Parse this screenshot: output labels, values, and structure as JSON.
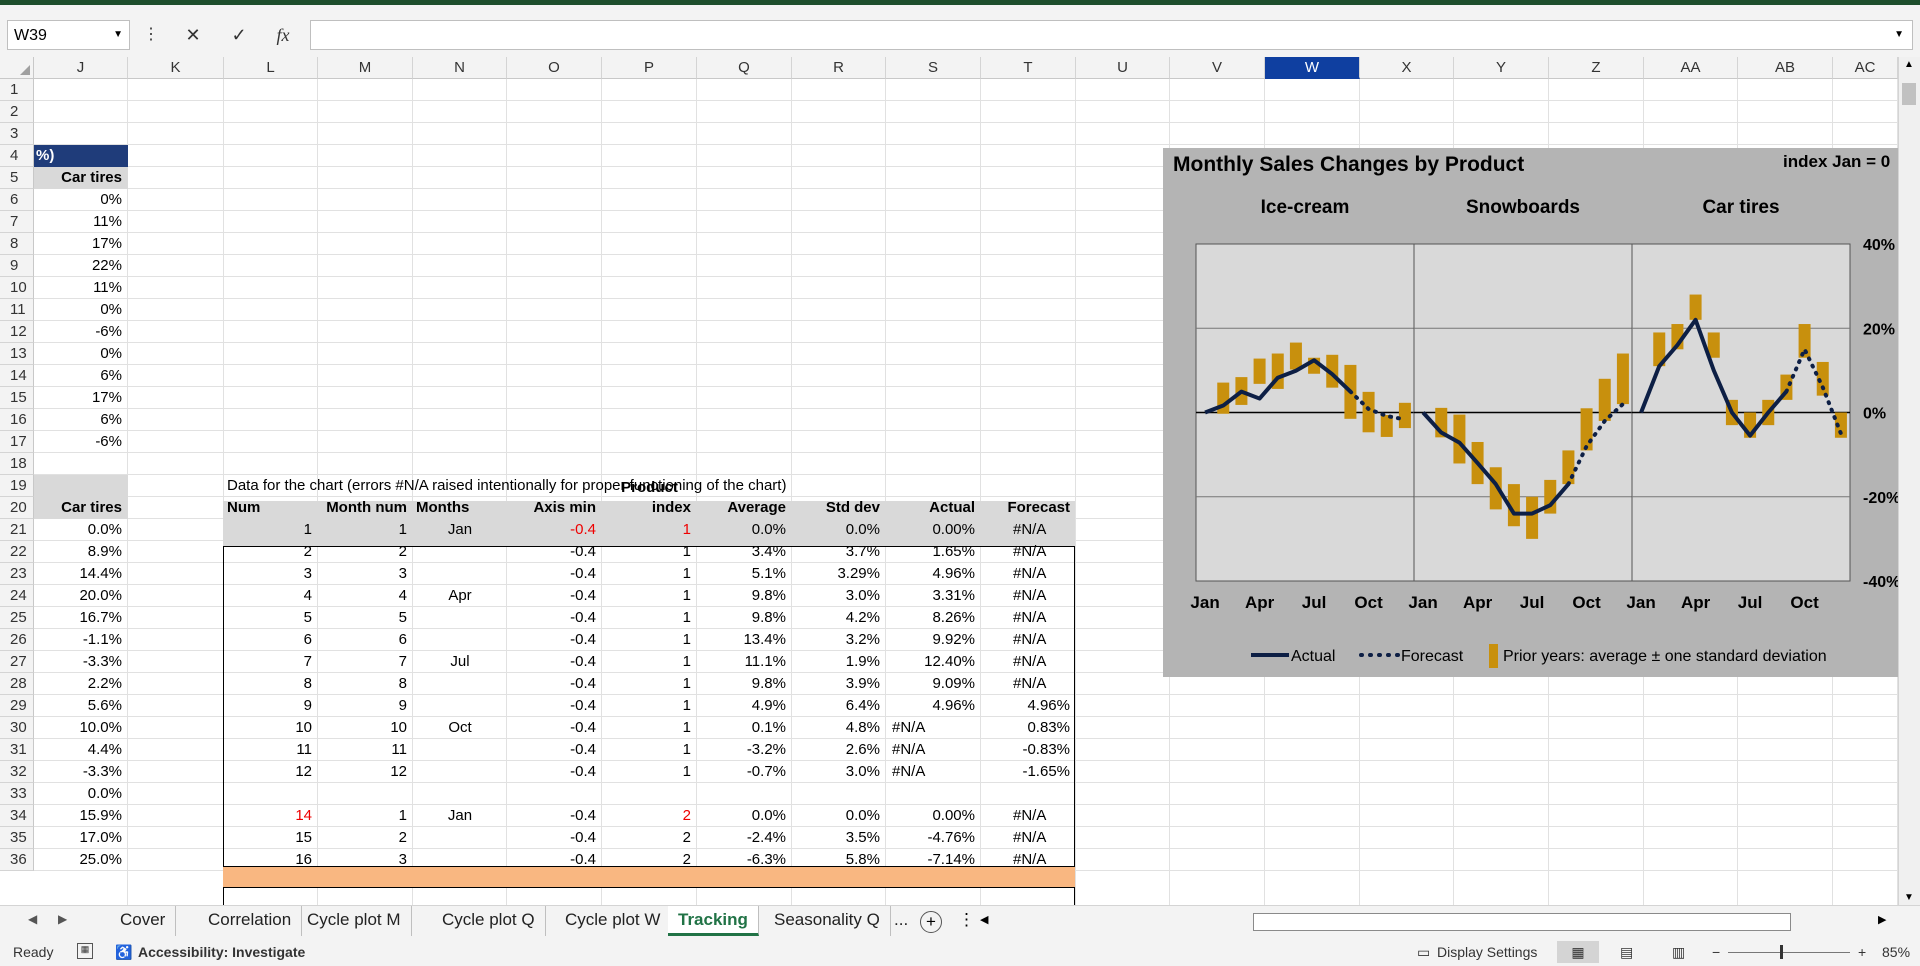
{
  "formula_bar": {
    "name_box": "W39",
    "cancel": "✕",
    "enter": "✓",
    "fx": "fx",
    "formula": ""
  },
  "columns": [
    "J",
    "K",
    "L",
    "M",
    "N",
    "O",
    "P",
    "Q",
    "R",
    "S",
    "T",
    "U",
    "V",
    "W",
    "X",
    "Y",
    "Z",
    "AA",
    "AB",
    "AC"
  ],
  "selected_column": "W",
  "rows": [
    "1",
    "2",
    "3",
    "4",
    "5",
    "6",
    "7",
    "8",
    "9",
    "10",
    "11",
    "12",
    "13",
    "14",
    "15",
    "16",
    "17",
    "18",
    "19",
    "20",
    "21",
    "22",
    "23",
    "24",
    "25",
    "26",
    "27",
    "28",
    "29",
    "30",
    "31",
    "32",
    "33",
    "34",
    "35",
    "36"
  ],
  "col_j": {
    "r4": "%)",
    "r5": "Car tires",
    "top_values": [
      "0%",
      "11%",
      "17%",
      "22%",
      "11%",
      "0%",
      "-6%",
      "0%",
      "6%",
      "17%",
      "6%",
      "-6%"
    ],
    "r20": "Car tires",
    "bottom_values": [
      "0.0%",
      "8.9%",
      "14.4%",
      "20.0%",
      "16.7%",
      "-1.1%",
      "-3.3%",
      "2.2%",
      "5.6%",
      "10.0%",
      "4.4%",
      "-3.3%",
      "0.0%",
      "15.9%",
      "17.0%",
      "25.0%"
    ]
  },
  "table": {
    "caption": "Data for the chart (errors #N/A raised intentionally for proper functioning of the chart)",
    "headers": {
      "num": "Num",
      "month_num": "Month num",
      "months": "Months",
      "axis_min": "Axis min",
      "product_top": "Product",
      "product_bottom": "index",
      "average": "Average",
      "std_dev": "Std dev",
      "actual": "Actual",
      "forecast": "Forecast"
    },
    "rows": [
      [
        "1",
        "1",
        "Jan",
        "-0.4",
        "1",
        "0.0%",
        "0.0%",
        "0.00%",
        "#N/A"
      ],
      [
        "2",
        "2",
        "",
        "-0.4",
        "1",
        "3.4%",
        "3.7%",
        "1.65%",
        "#N/A"
      ],
      [
        "3",
        "3",
        "",
        "-0.4",
        "1",
        "5.1%",
        "3.29%",
        "4.96%",
        "#N/A"
      ],
      [
        "4",
        "4",
        "Apr",
        "-0.4",
        "1",
        "9.8%",
        "3.0%",
        "3.31%",
        "#N/A"
      ],
      [
        "5",
        "5",
        "",
        "-0.4",
        "1",
        "9.8%",
        "4.2%",
        "8.26%",
        "#N/A"
      ],
      [
        "6",
        "6",
        "",
        "-0.4",
        "1",
        "13.4%",
        "3.2%",
        "9.92%",
        "#N/A"
      ],
      [
        "7",
        "7",
        "Jul",
        "-0.4",
        "1",
        "11.1%",
        "1.9%",
        "12.40%",
        "#N/A"
      ],
      [
        "8",
        "8",
        "",
        "-0.4",
        "1",
        "9.8%",
        "3.9%",
        "9.09%",
        "#N/A"
      ],
      [
        "9",
        "9",
        "",
        "-0.4",
        "1",
        "4.9%",
        "6.4%",
        "4.96%",
        "4.96%"
      ],
      [
        "10",
        "10",
        "Oct",
        "-0.4",
        "1",
        "0.1%",
        "4.8%",
        "#N/A",
        "0.83%"
      ],
      [
        "11",
        "11",
        "",
        "-0.4",
        "1",
        "-3.2%",
        "2.6%",
        "#N/A",
        "-0.83%"
      ],
      [
        "12",
        "12",
        "",
        "-0.4",
        "1",
        "-0.7%",
        "3.0%",
        "#N/A",
        "-1.65%"
      ],
      [
        "",
        "",
        "",
        "",
        "",
        "",
        "",
        "",
        ""
      ],
      [
        "14",
        "1",
        "Jan",
        "-0.4",
        "2",
        "0.0%",
        "0.0%",
        "0.00%",
        "#N/A"
      ],
      [
        "15",
        "2",
        "",
        "-0.4",
        "2",
        "-2.4%",
        "3.5%",
        "-4.76%",
        "#N/A"
      ],
      [
        "16",
        "3",
        "",
        "-0.4",
        "2",
        "-6.3%",
        "5.8%",
        "-7.14%",
        "#N/A"
      ]
    ]
  },
  "chart_data": {
    "type": "line",
    "title": "Monthly Sales Changes by Product",
    "subtitle": "index Jan = 0",
    "panels": [
      "Ice-cream",
      "Snowboards",
      "Car tires"
    ],
    "x_tick_labels": [
      "Jan",
      "Apr",
      "Jul",
      "Oct"
    ],
    "y_tick_labels": [
      "40%",
      "20%",
      "0%",
      "-20%",
      "-40%"
    ],
    "ylim": [
      -0.4,
      0.4
    ],
    "legend": {
      "actual": "Actual",
      "forecast": "Forecast",
      "band": "Prior years: average ± one standard deviation"
    },
    "series": [
      {
        "average": [
          0.0,
          0.034,
          0.051,
          0.098,
          0.098,
          0.134,
          0.111,
          0.098,
          0.049,
          0.001,
          -0.032,
          -0.007
        ],
        "std": [
          0.0,
          0.037,
          0.033,
          0.03,
          0.042,
          0.032,
          0.019,
          0.039,
          0.064,
          0.048,
          0.026,
          0.03
        ],
        "actual": [
          0.0,
          0.0165,
          0.0496,
          0.0331,
          0.0826,
          0.0992,
          0.124,
          0.0909,
          0.0496,
          null,
          null,
          null
        ],
        "forecast": [
          null,
          null,
          null,
          null,
          null,
          null,
          null,
          null,
          0.0496,
          0.0083,
          -0.0083,
          -0.0165
        ]
      },
      {
        "average": [
          0.0,
          -0.024,
          -0.063,
          -0.12,
          -0.18,
          -0.22,
          -0.25,
          -0.2,
          -0.13,
          -0.04,
          0.03,
          0.08
        ],
        "std": [
          0.0,
          0.035,
          0.058,
          0.05,
          0.05,
          0.05,
          0.05,
          0.04,
          0.04,
          0.05,
          0.05,
          0.06
        ],
        "actual": [
          0.0,
          -0.0476,
          -0.0714,
          -0.12,
          -0.17,
          -0.24,
          -0.24,
          -0.22,
          -0.17,
          null,
          null,
          null
        ],
        "forecast": [
          null,
          null,
          null,
          null,
          null,
          null,
          null,
          null,
          -0.17,
          -0.08,
          -0.02,
          0.02
        ]
      },
      {
        "average": [
          0.0,
          0.15,
          0.18,
          0.25,
          0.16,
          0.0,
          -0.03,
          0.0,
          0.06,
          0.17,
          0.08,
          -0.03
        ],
        "std": [
          0.0,
          0.04,
          0.03,
          0.03,
          0.03,
          0.03,
          0.03,
          0.03,
          0.03,
          0.04,
          0.04,
          0.03
        ],
        "actual": [
          0.0,
          0.11,
          0.16,
          0.22,
          0.1,
          0.0,
          -0.055,
          0.0,
          0.05,
          null,
          null,
          null
        ],
        "forecast": [
          null,
          null,
          null,
          null,
          null,
          null,
          null,
          null,
          0.05,
          0.15,
          0.06,
          -0.05
        ]
      }
    ]
  },
  "sheet_tabs": [
    "Cover",
    "Correlation",
    "Cycle plot M",
    "Cycle plot Q",
    "Cycle plot W",
    "Tracking",
    "Seasonality Q",
    "..."
  ],
  "active_tab": "Tracking",
  "status": {
    "ready": "Ready",
    "accessibility": "Accessibility: Investigate",
    "display_settings": "Display Settings",
    "zoom": "85%"
  },
  "colors": {
    "actual": "#0d1f45",
    "band": "#c8900d",
    "chart_bg": "#b4b4b4",
    "plot_bg": "#d9d9d9",
    "selected": "#0f3fa0"
  }
}
